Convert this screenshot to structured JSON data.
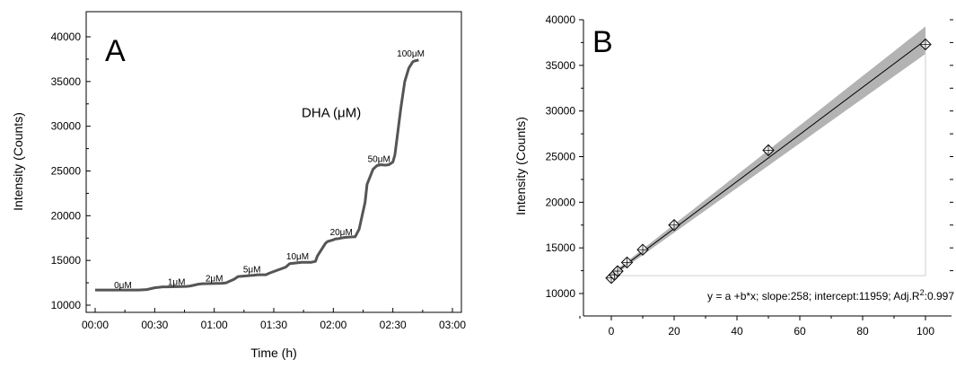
{
  "chart_data": [
    {
      "type": "line",
      "panel_label": "A",
      "xlabel": "Time (h)",
      "ylabel": "Intensity (Counts)",
      "xlim_minutes": [
        0,
        180
      ],
      "ylim": [
        10000,
        40000
      ],
      "x_ticks": [
        {
          "minutes": 0,
          "label": "00:00"
        },
        {
          "minutes": 30,
          "label": "00:30"
        },
        {
          "minutes": 60,
          "label": "01:00"
        },
        {
          "minutes": 90,
          "label": "01:30"
        },
        {
          "minutes": 120,
          "label": "02:00"
        },
        {
          "minutes": 150,
          "label": "02:30"
        },
        {
          "minutes": 180,
          "label": "03:00"
        }
      ],
      "y_ticks": [
        10000,
        15000,
        20000,
        25000,
        30000,
        35000,
        40000
      ],
      "series": [
        {
          "x": [
            0,
            10,
            22,
            26,
            30,
            34,
            36,
            46,
            48,
            52,
            54,
            64,
            66,
            70,
            72,
            80,
            82,
            86,
            88,
            96,
            98,
            104,
            106,
            109,
            111,
            112,
            116,
            117,
            120,
            121,
            123,
            125,
            127,
            131,
            133,
            136,
            137,
            140,
            142,
            144,
            146,
            148,
            150,
            151,
            152,
            154,
            156,
            158,
            160,
            161,
            163
          ],
          "y": [
            11700,
            11700,
            11700,
            11750,
            11950,
            12050,
            12050,
            12100,
            12150,
            12350,
            12400,
            12450,
            12500,
            12900,
            13200,
            13350,
            13400,
            13400,
            13600,
            14250,
            14650,
            14800,
            14800,
            14800,
            14900,
            15500,
            16900,
            17100,
            17300,
            17400,
            17450,
            17550,
            17600,
            17650,
            18500,
            21500,
            23500,
            25200,
            25600,
            25700,
            25650,
            25700,
            26000,
            26800,
            28500,
            32000,
            35000,
            36500,
            37200,
            37300,
            37400
          ]
        }
      ],
      "annotations": [
        {
          "text": "0μM",
          "x": 14,
          "y": 11900
        },
        {
          "text": "1μM",
          "x": 41,
          "y": 12250
        },
        {
          "text": "2μM",
          "x": 60,
          "y": 12650
        },
        {
          "text": "5μM",
          "x": 79,
          "y": 13650
        },
        {
          "text": "10μM",
          "x": 102,
          "y": 15100
        },
        {
          "text": "20μM",
          "x": 124,
          "y": 17850
        },
        {
          "text": "50μM",
          "x": 143,
          "y": 26000
        },
        {
          "text": "100μM",
          "x": 159,
          "y": 37800
        },
        {
          "text": "DHA (μM)",
          "x": 119,
          "y": 31000
        }
      ]
    },
    {
      "type": "scatter",
      "panel_label": "B",
      "xlabel": "",
      "ylabel": "Intensity (Counts)",
      "xlim": [
        -10,
        105
      ],
      "ylim": [
        10000,
        40500
      ],
      "x_ticks": [
        0,
        20,
        40,
        60,
        80,
        100
      ],
      "y_ticks": [
        10000,
        15000,
        20000,
        25000,
        30000,
        35000,
        40000
      ],
      "points": {
        "x": [
          0,
          1,
          2,
          5,
          10,
          20,
          50,
          100
        ],
        "y": [
          11700,
          12050,
          12450,
          13400,
          14800,
          17500,
          25700,
          37300
        ]
      },
      "fit": {
        "slope": 258,
        "intercept": 11959,
        "x_range": [
          0,
          100
        ],
        "band_at_x0": 200,
        "band_at_x100": 1500
      },
      "equation_text": "y = a +b*x; slope:258; intercept:11959; Adj.R",
      "equation_sup": "2",
      "equation_tail": ":0.997",
      "colors": {
        "line": "#000000",
        "band": "#b3b3b3",
        "marker_edge": "#000000"
      }
    }
  ]
}
